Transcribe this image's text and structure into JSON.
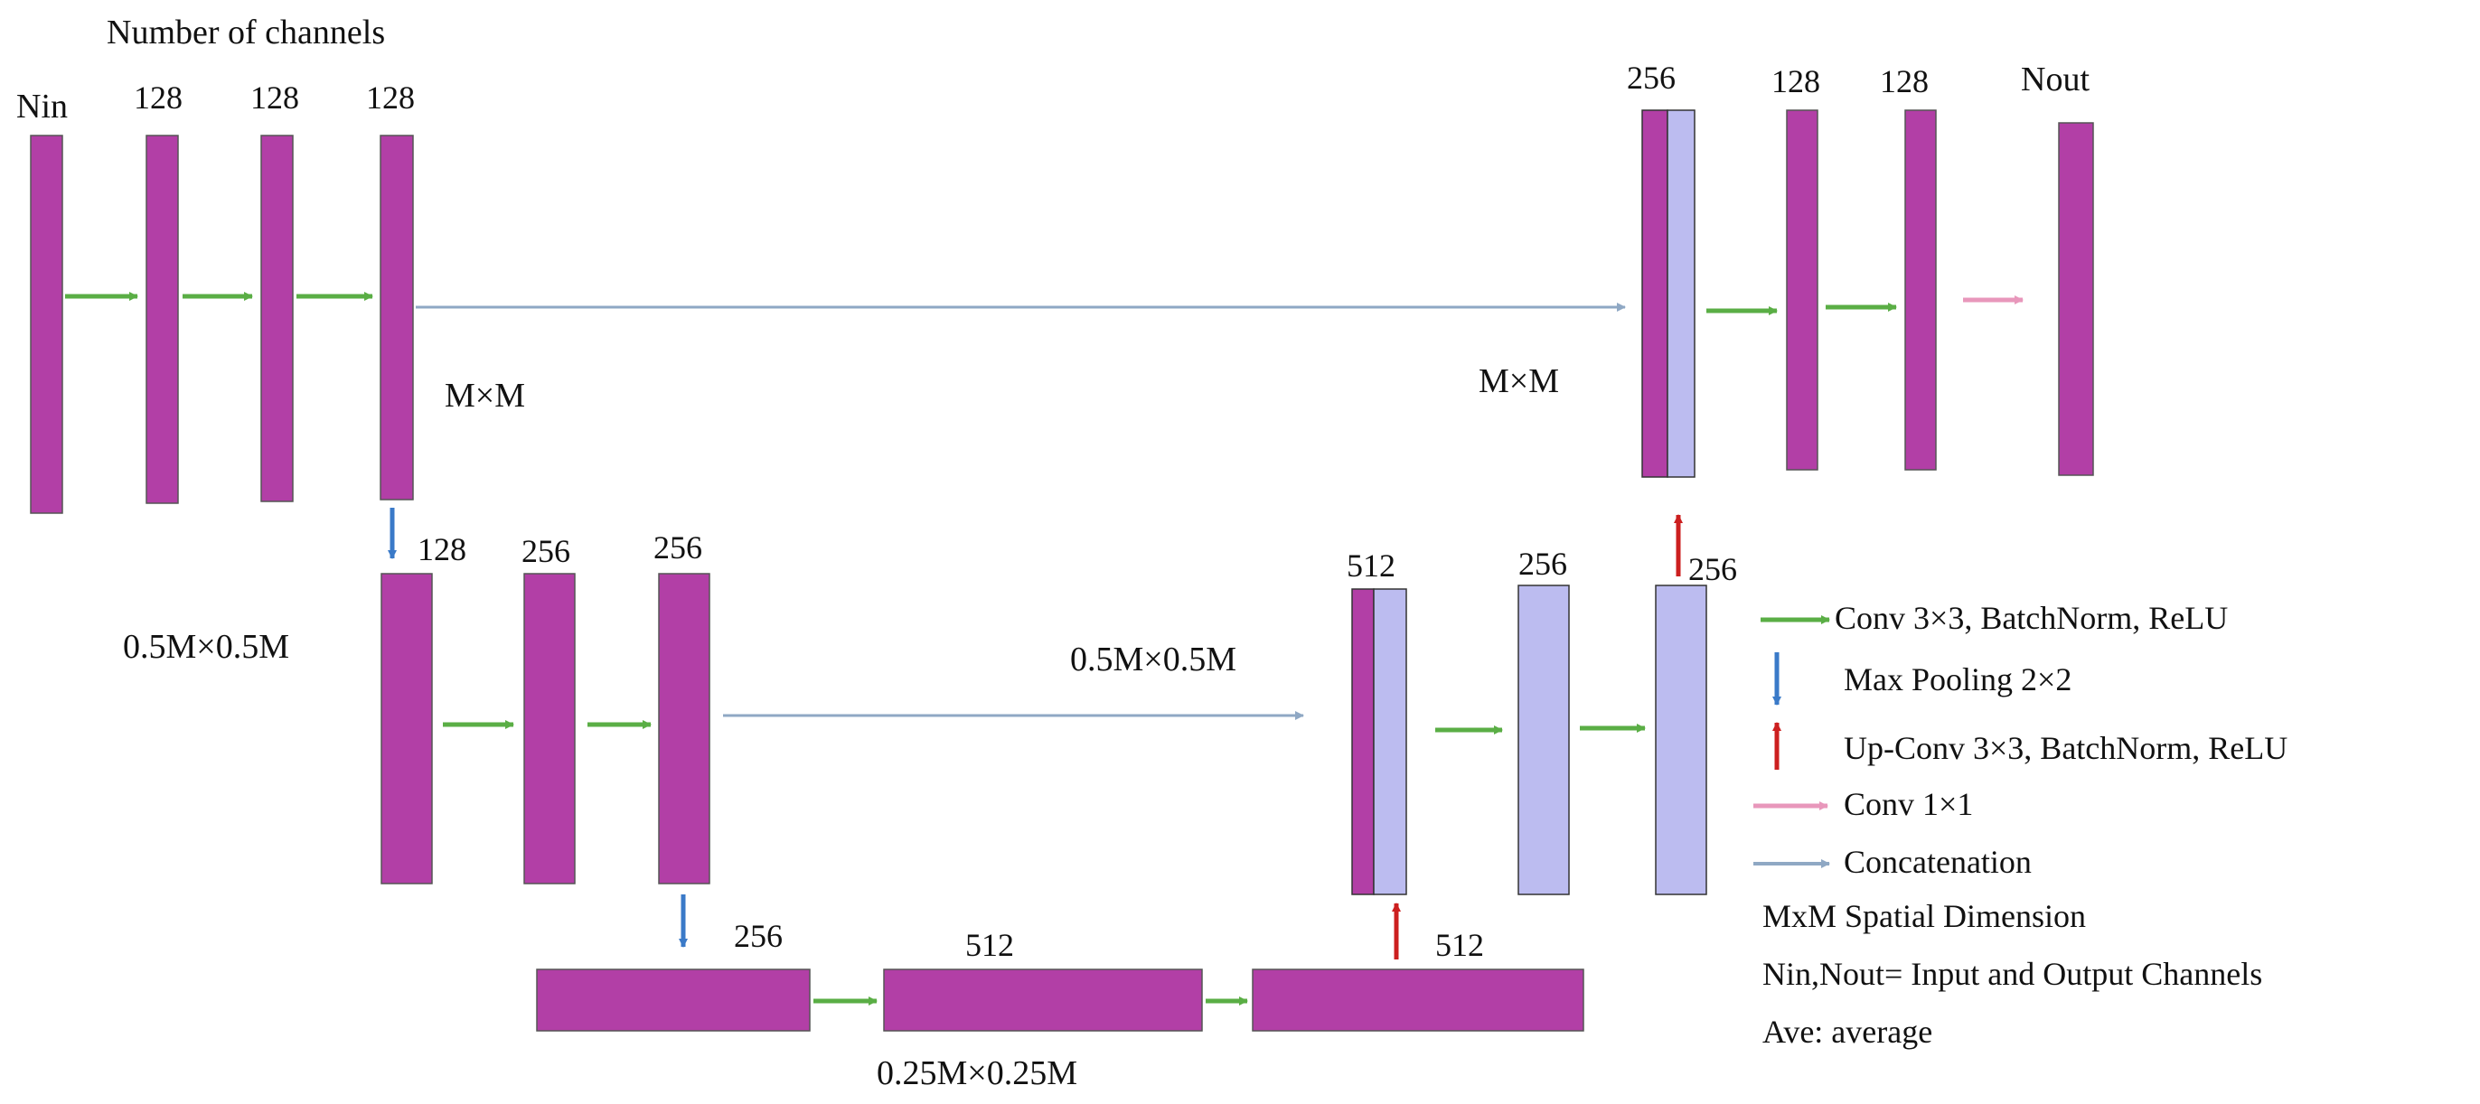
{
  "title": "Number of channels",
  "colors": {
    "magenta_block": "#b23fa6",
    "lavender_block": "#bcbcf0",
    "conv_arrow": "#5aae45",
    "pool_arrow": "#3a7ac8",
    "upconv_arrow": "#cc1f1f",
    "conv1x1_arrow": "#e897bb",
    "concat_arrow": "#8fa8c4"
  },
  "encoder_row1": {
    "channels": [
      "Nin",
      "128",
      "128",
      "128"
    ],
    "dimension": "M×M"
  },
  "encoder_row2": {
    "channels": [
      "128",
      "256",
      "256"
    ],
    "dimension": "0.5M×0.5M"
  },
  "bottleneck": {
    "channels": [
      "256",
      "512",
      "512"
    ],
    "dimension": "0.25M×0.25M"
  },
  "decoder_row2": {
    "channels": [
      "512",
      "256",
      "256"
    ],
    "dimension": "0.5M×0.5M"
  },
  "decoder_row1": {
    "channels": [
      "256",
      "128",
      "128",
      "Nout"
    ],
    "dimension": "M×M"
  },
  "legend": {
    "conv": "Conv 3×3, BatchNorm, ReLU",
    "pool": "Max Pooling 2×2",
    "upconv": "Up-Conv 3×3, BatchNorm, ReLU",
    "conv1x1": "Conv 1×1",
    "concat": "Concatenation",
    "spatial": "MxM Spatial Dimension",
    "io": "Nin,Nout= Input and Output Channels",
    "ave": "Ave: average"
  }
}
